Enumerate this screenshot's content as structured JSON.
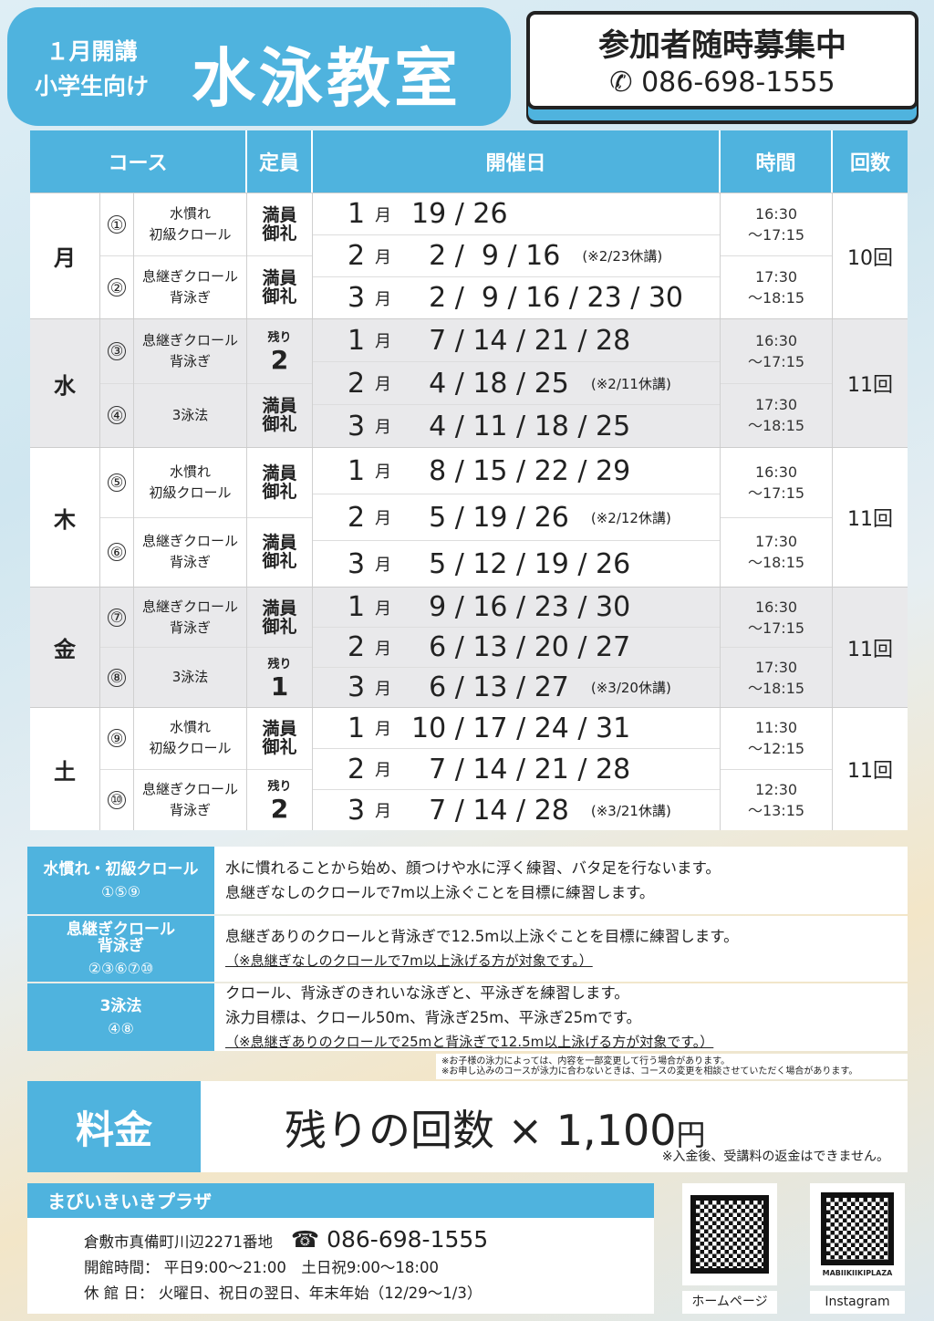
{
  "header": {
    "open": "１月開講",
    "target": "小学生向け",
    "title": "水泳教室",
    "recruit": "参加者随時募集中",
    "phone": "086-698-1555"
  },
  "table": {
    "headers": {
      "course": "コース",
      "capacity": "定員",
      "dates": "開催日",
      "time": "時間",
      "count": "回数"
    },
    "groups": [
      {
        "day": "月",
        "count": "10回",
        "grey": false,
        "courses": [
          {
            "num": "①",
            "name": "水慣れ\n初級クロール",
            "cap": "満員\n御礼"
          },
          {
            "num": "②",
            "name": "息継ぎクロール\n背泳ぎ",
            "cap": "満員\n御礼"
          }
        ],
        "months": [
          {
            "m": "1",
            "u": "月",
            "d": "19 / 26",
            "note": ""
          },
          {
            "m": "2",
            "u": "月",
            "d": "  2 /  9 / 16",
            "note": "(※2/23休講)"
          },
          {
            "m": "3",
            "u": "月",
            "d": "  2 /  9 / 16 / 23 / 30",
            "note": ""
          }
        ],
        "times": [
          "16:30\n～17:15",
          "17:30\n～18:15"
        ]
      },
      {
        "day": "水",
        "count": "11回",
        "grey": true,
        "courses": [
          {
            "num": "③",
            "name": "息継ぎクロール\n背泳ぎ",
            "rem_label": "残り",
            "rem": "2"
          },
          {
            "num": "④",
            "name": "3泳法",
            "cap": "満員\n御礼"
          }
        ],
        "months": [
          {
            "m": "1",
            "u": "月",
            "d": "  7 / 14 / 21 / 28",
            "note": ""
          },
          {
            "m": "2",
            "u": "月",
            "d": "  4 / 18 / 25",
            "note": "(※2/11休講)"
          },
          {
            "m": "3",
            "u": "月",
            "d": "  4 / 11 / 18 / 25",
            "note": ""
          }
        ],
        "times": [
          "16:30\n～17:15",
          "17:30\n～18:15"
        ]
      },
      {
        "day": "木",
        "count": "11回",
        "grey": false,
        "courses": [
          {
            "num": "⑤",
            "name": "水慣れ\n初級クロール",
            "cap": "満員\n御礼"
          },
          {
            "num": "⑥",
            "name": "息継ぎクロール\n背泳ぎ",
            "cap": "満員\n御礼"
          }
        ],
        "months": [
          {
            "m": "1",
            "u": "月",
            "d": "  8 / 15 / 22 / 29",
            "note": ""
          },
          {
            "m": "2",
            "u": "月",
            "d": "  5 / 19 / 26",
            "note": "(※2/12休講)"
          },
          {
            "m": "3",
            "u": "月",
            "d": "  5 / 12 / 19 / 26",
            "note": ""
          }
        ],
        "times": [
          "16:30\n～17:15",
          "17:30\n～18:15"
        ]
      },
      {
        "day": "金",
        "count": "11回",
        "grey": true,
        "courses": [
          {
            "num": "⑦",
            "name": "息継ぎクロール\n背泳ぎ",
            "cap": "満員\n御礼"
          },
          {
            "num": "⑧",
            "name": "3泳法",
            "rem_label": "残り",
            "rem": "1"
          }
        ],
        "months": [
          {
            "m": "1",
            "u": "月",
            "d": "  9 / 16 / 23 / 30",
            "note": ""
          },
          {
            "m": "2",
            "u": "月",
            "d": "  6 / 13 / 20 / 27",
            "note": ""
          },
          {
            "m": "3",
            "u": "月",
            "d": "  6 / 13 / 27",
            "note": "(※3/20休講)"
          }
        ],
        "times": [
          "16:30\n～17:15",
          "17:30\n～18:15"
        ]
      },
      {
        "day": "土",
        "count": "11回",
        "grey": false,
        "courses": [
          {
            "num": "⑨",
            "name": "水慣れ\n初級クロール",
            "cap": "満員\n御礼"
          },
          {
            "num": "⑩",
            "name": "息継ぎクロール\n背泳ぎ",
            "rem_label": "残り",
            "rem": "2"
          }
        ],
        "months": [
          {
            "m": "1",
            "u": "月",
            "d": "10 / 17 / 24 / 31",
            "note": ""
          },
          {
            "m": "2",
            "u": "月",
            "d": "  7 / 14 / 21 / 28",
            "note": ""
          },
          {
            "m": "3",
            "u": "月",
            "d": "  7 / 14 / 28",
            "note": "(※3/21休講)"
          }
        ],
        "times": [
          "11:30\n～12:15",
          "12:30\n～13:15"
        ]
      }
    ]
  },
  "descriptions": [
    {
      "name": "水慣れ・初級クロール",
      "courses": "①⑤⑨",
      "lines": [
        "水に慣れることから始め、顔つけや水に浮く練習、バタ足を行ないます。",
        "息継ぎなしのクロールで7m以上泳ぐことを目標に練習します。"
      ],
      "note": ""
    },
    {
      "name": "息継ぎクロール\n背泳ぎ",
      "courses": "②③⑥⑦⑩",
      "lines": [
        "息継ぎありのクロールと背泳ぎで12.5m以上泳ぐことを目標に練習します。"
      ],
      "note": "（※息継ぎなしのクロールで7m以上泳げる方が対象です。）"
    },
    {
      "name": "3泳法",
      "courses": "④⑧",
      "lines": [
        "クロール、背泳ぎのきれいな泳ぎと、平泳ぎを練習します。",
        "泳力目標は、クロール50m、背泳ぎ25m、平泳ぎ25mです。"
      ],
      "note": "（※息継ぎありのクロールで25mと背泳ぎで12.5m以上泳げる方が対象です。）"
    }
  ],
  "notes": [
    "※お子様の泳力によっては、内容を一部変更して行う場合があります。",
    "※お申し込みのコースが泳力に合わないときは、コースの変更を相談させていただく場合があります。"
  ],
  "price": {
    "label": "料金",
    "text": "残りの回数 × 1,100",
    "unit": "円",
    "note": "※入金後、受講料の返金はできません。"
  },
  "facility": {
    "name": "まびいきいきプラザ",
    "address": "倉敷市真備町川辺2271番地",
    "phone_icon": "☎",
    "phone": "086-698-1555",
    "hours": "開館時間：  平日9:00～21:00　土日祝9:00～18:00",
    "closed": "休 館 日：  火曜日、祝日の翌日、年末年始（12/29～1/3）"
  },
  "qr": {
    "home_label": "ホームページ",
    "insta_label": "Instagram",
    "insta_id": "MABIIKIIKIPLAZA"
  },
  "colors": {
    "accent": "#4fb3de",
    "grey_row": "#e9e9eb"
  }
}
